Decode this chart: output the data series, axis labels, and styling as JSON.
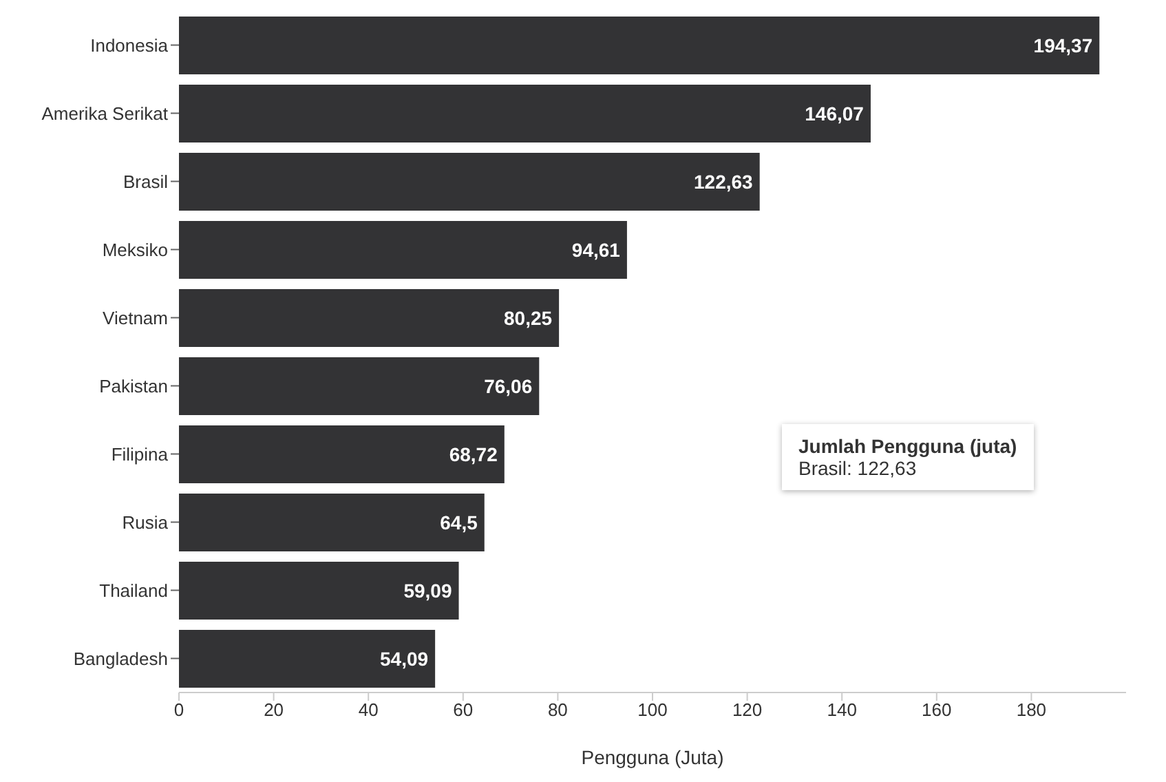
{
  "chart_data": {
    "type": "bar",
    "orientation": "horizontal",
    "xlabel": "Pengguna (Juta)",
    "categories": [
      "Indonesia",
      "Amerika Serikat",
      "Brasil",
      "Meksiko",
      "Vietnam",
      "Pakistan",
      "Filipina",
      "Rusia",
      "Thailand",
      "Bangladesh"
    ],
    "values": [
      194.37,
      146.07,
      122.63,
      94.61,
      80.25,
      76.06,
      68.72,
      64.5,
      59.09,
      54.09
    ],
    "color": "#333335",
    "xlim": [
      0,
      200
    ],
    "xticks": [
      0,
      20,
      40,
      60,
      80,
      100,
      120,
      140,
      160,
      180
    ],
    "value_labels": [
      "194,37",
      "146,07",
      "122,63",
      "94,61",
      "80,25",
      "76,06",
      "68,72",
      "64,5",
      "59,09",
      "54,09"
    ],
    "annotations": [
      "Jumlah Pengguna (juta)",
      "Brasil: 122,63"
    ]
  }
}
